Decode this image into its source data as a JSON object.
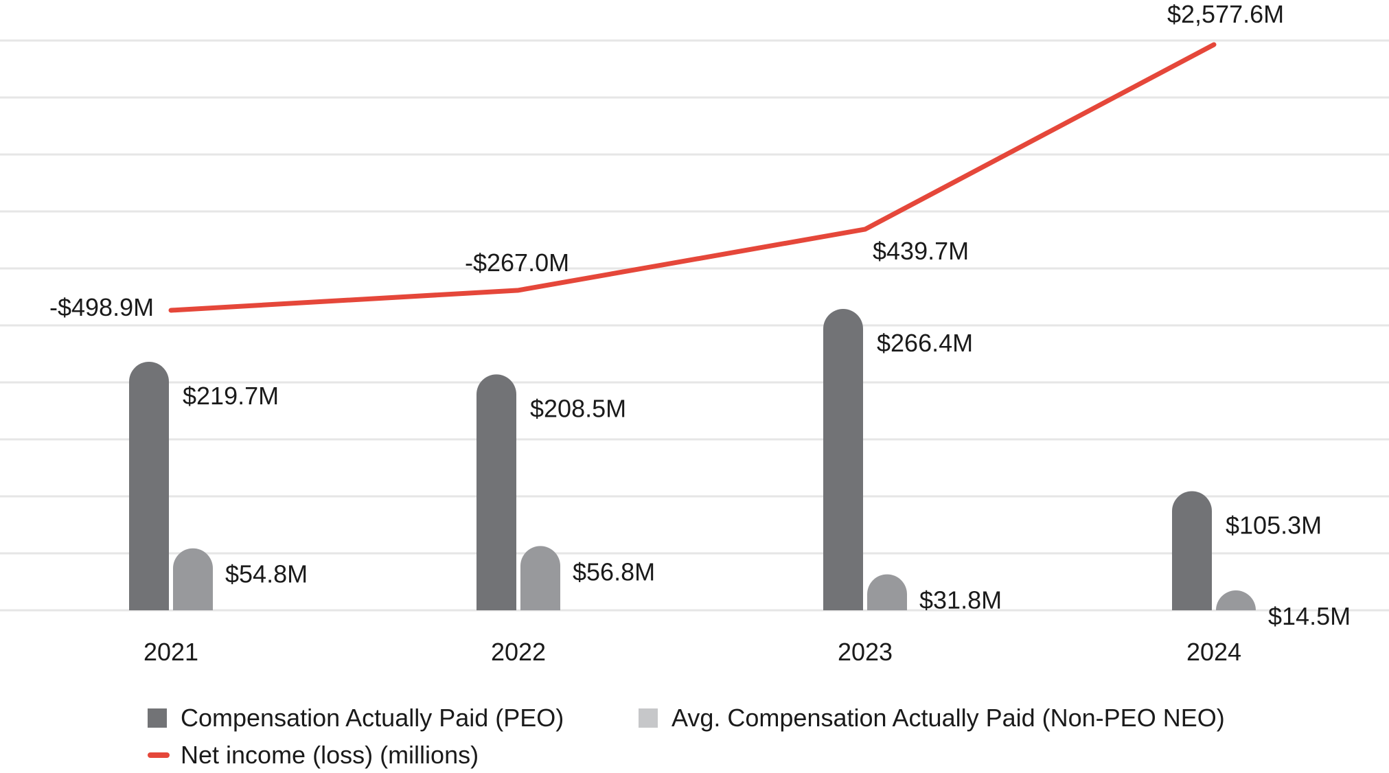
{
  "colors": {
    "peo": "#727376",
    "neo": "#98999c",
    "net_income": "#e5473a",
    "grid": "#e6e6e6",
    "neo_legend": "#c6c7c9"
  },
  "chart_data": {
    "type": "bar",
    "categories": [
      "2021",
      "2022",
      "2023",
      "2024"
    ],
    "series": [
      {
        "name": "Compensation Actually Paid (PEO)",
        "type": "bar",
        "values": [
          219.7,
          208.5,
          266.4,
          105.3
        ],
        "labels": [
          "$219.7M",
          "$208.5M",
          "$266.4M",
          "$105.3M"
        ]
      },
      {
        "name": "Avg. Compensation Actually Paid (Non-PEO NEO)",
        "type": "bar",
        "values": [
          54.8,
          56.8,
          31.8,
          14.5
        ],
        "labels": [
          "$54.8M",
          "$56.8M",
          "$31.8M",
          "$14.5M"
        ]
      },
      {
        "name": "Net income (loss) (millions)",
        "type": "line",
        "values": [
          -498.9,
          -267.0,
          439.7,
          2577.6
        ],
        "labels": [
          "-$498.9M",
          "-$267.0M",
          "$439.7M",
          "$2,577.6M"
        ]
      }
    ],
    "grid": true,
    "legend_position": "bottom"
  }
}
